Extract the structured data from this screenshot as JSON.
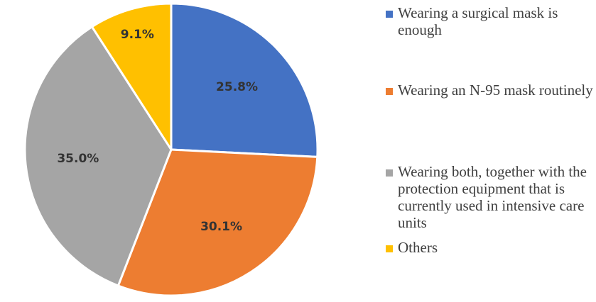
{
  "chart_data": {
    "type": "pie",
    "title": "",
    "categories": [
      "Wearing a surgical mask is enough",
      "Wearing an N-95 mask routinely",
      "Wearing both, together with the protection equipment that is currently used in intensive care units",
      "Others"
    ],
    "values": [
      25.8,
      30.1,
      35.0,
      9.1
    ],
    "value_labels": [
      "25.8%",
      "30.1%",
      "35.0%",
      "9.1%"
    ],
    "colors": [
      "#4472c4",
      "#ed7d31",
      "#a5a5a5",
      "#ffc000"
    ],
    "start_angle": "12 o'clock",
    "direction": "clockwise",
    "legend_position": "right"
  },
  "legend": {
    "items": [
      "Wearing a surgical mask is enough",
      "Wearing an N-95 mask routinely",
      "Wearing both, together with the protection equipment that is currently used in intensive care units",
      "Others"
    ]
  }
}
